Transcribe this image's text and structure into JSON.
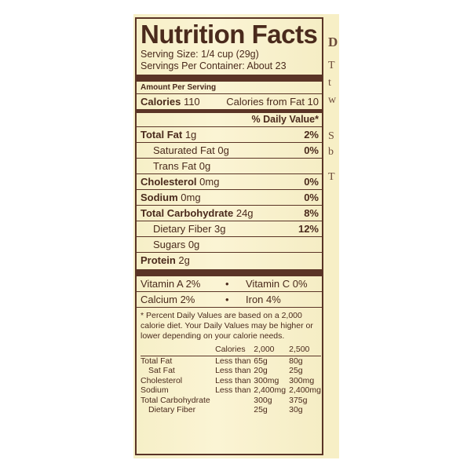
{
  "side_panel": {
    "chars": [
      "D",
      "T",
      "t",
      "w",
      "S",
      "b",
      "T"
    ]
  },
  "label": {
    "title": "Nutrition Facts",
    "serving_size": "Serving Size: 1/4 cup (29g)",
    "servings_per_container": "Servings Per Container: About 23",
    "amount_per_serving": "Amount Per Serving",
    "calories_label": "Calories",
    "calories_value": "110",
    "calories_from_fat": "Calories from Fat 10",
    "daily_value_header": "% Daily Value*",
    "nutrients": [
      {
        "name": "Total Fat",
        "amount": "1g",
        "dv": "2%",
        "bold": true
      },
      {
        "name": "Saturated Fat",
        "amount": "0g",
        "dv": "0%",
        "bold": false
      },
      {
        "name": "Trans Fat",
        "amount": "0g",
        "dv": "",
        "bold": false
      },
      {
        "name": "Cholesterol",
        "amount": "0mg",
        "dv": "0%",
        "bold": true
      },
      {
        "name": "Sodium",
        "amount": "0mg",
        "dv": "0%",
        "bold": true
      },
      {
        "name": "Total Carbohydrate",
        "amount": "24g",
        "dv": "8%",
        "bold": true
      },
      {
        "name": "Dietary Fiber",
        "amount": "3g",
        "dv": "12%",
        "bold": false
      },
      {
        "name": "Sugars",
        "amount": "0g",
        "dv": "",
        "bold": false
      },
      {
        "name": "Protein",
        "amount": "2g",
        "dv": "",
        "bold": true
      }
    ],
    "vitamins": [
      {
        "left": "Vitamin A 2%",
        "dot": "•",
        "right": "Vitamin C 0%"
      },
      {
        "left": "Calcium 2%",
        "dot": "•",
        "right": "Iron 4%"
      }
    ],
    "footnote": "* Percent Daily Values are based on a 2,000 calorie diet. Your Daily Values may be higher or lower depending on your calorie needs.",
    "dv_table": {
      "header": [
        "",
        "Calories",
        "2,000",
        "2,500"
      ],
      "rows": [
        [
          "Total Fat",
          "Less than",
          "65g",
          "80g"
        ],
        [
          "Sat Fat",
          "Less than",
          "20g",
          "25g"
        ],
        [
          "Cholesterol",
          "Less than",
          "300mg",
          "300mg"
        ],
        [
          "Sodium",
          "Less than",
          "2,400mg",
          "2,400mg"
        ],
        [
          "Total Carbohydrate",
          "",
          "300g",
          "375g"
        ],
        [
          "Dietary Fiber",
          "",
          "25g",
          "30g"
        ]
      ]
    }
  }
}
